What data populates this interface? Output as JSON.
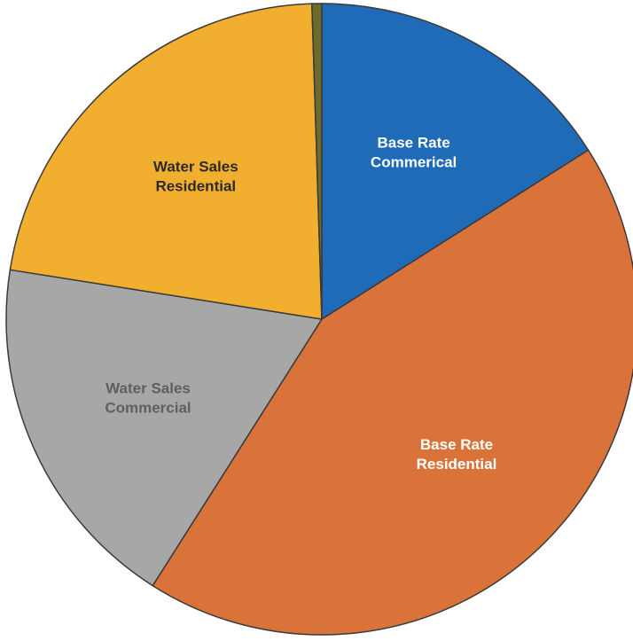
{
  "chart_data": {
    "type": "pie",
    "title": "",
    "slices": [
      {
        "label_lines": [
          "Base Rate",
          "Commerical"
        ],
        "value": 16.0,
        "color": "#1f6bb8",
        "label_color": "#ffffff"
      },
      {
        "label_lines": [
          "Base Rate",
          "Residential"
        ],
        "value": 43.0,
        "color": "#d9733a",
        "label_color": "#ffffff"
      },
      {
        "label_lines": [
          "Water Sales",
          "Commercial"
        ],
        "value": 18.5,
        "color": "#a7a7a7",
        "label_color": "#5f5f5f"
      },
      {
        "label_lines": [
          "Water Sales",
          "Residential"
        ],
        "value": 22.0,
        "color": "#f2ae2f",
        "label_color": "#2b2b2b"
      },
      {
        "label_lines": [],
        "value": 0.5,
        "color": "#6b6b2e",
        "label_color": "#000000"
      }
    ],
    "start_angle_deg": 0,
    "direction": "clockwise",
    "legend": "none"
  }
}
